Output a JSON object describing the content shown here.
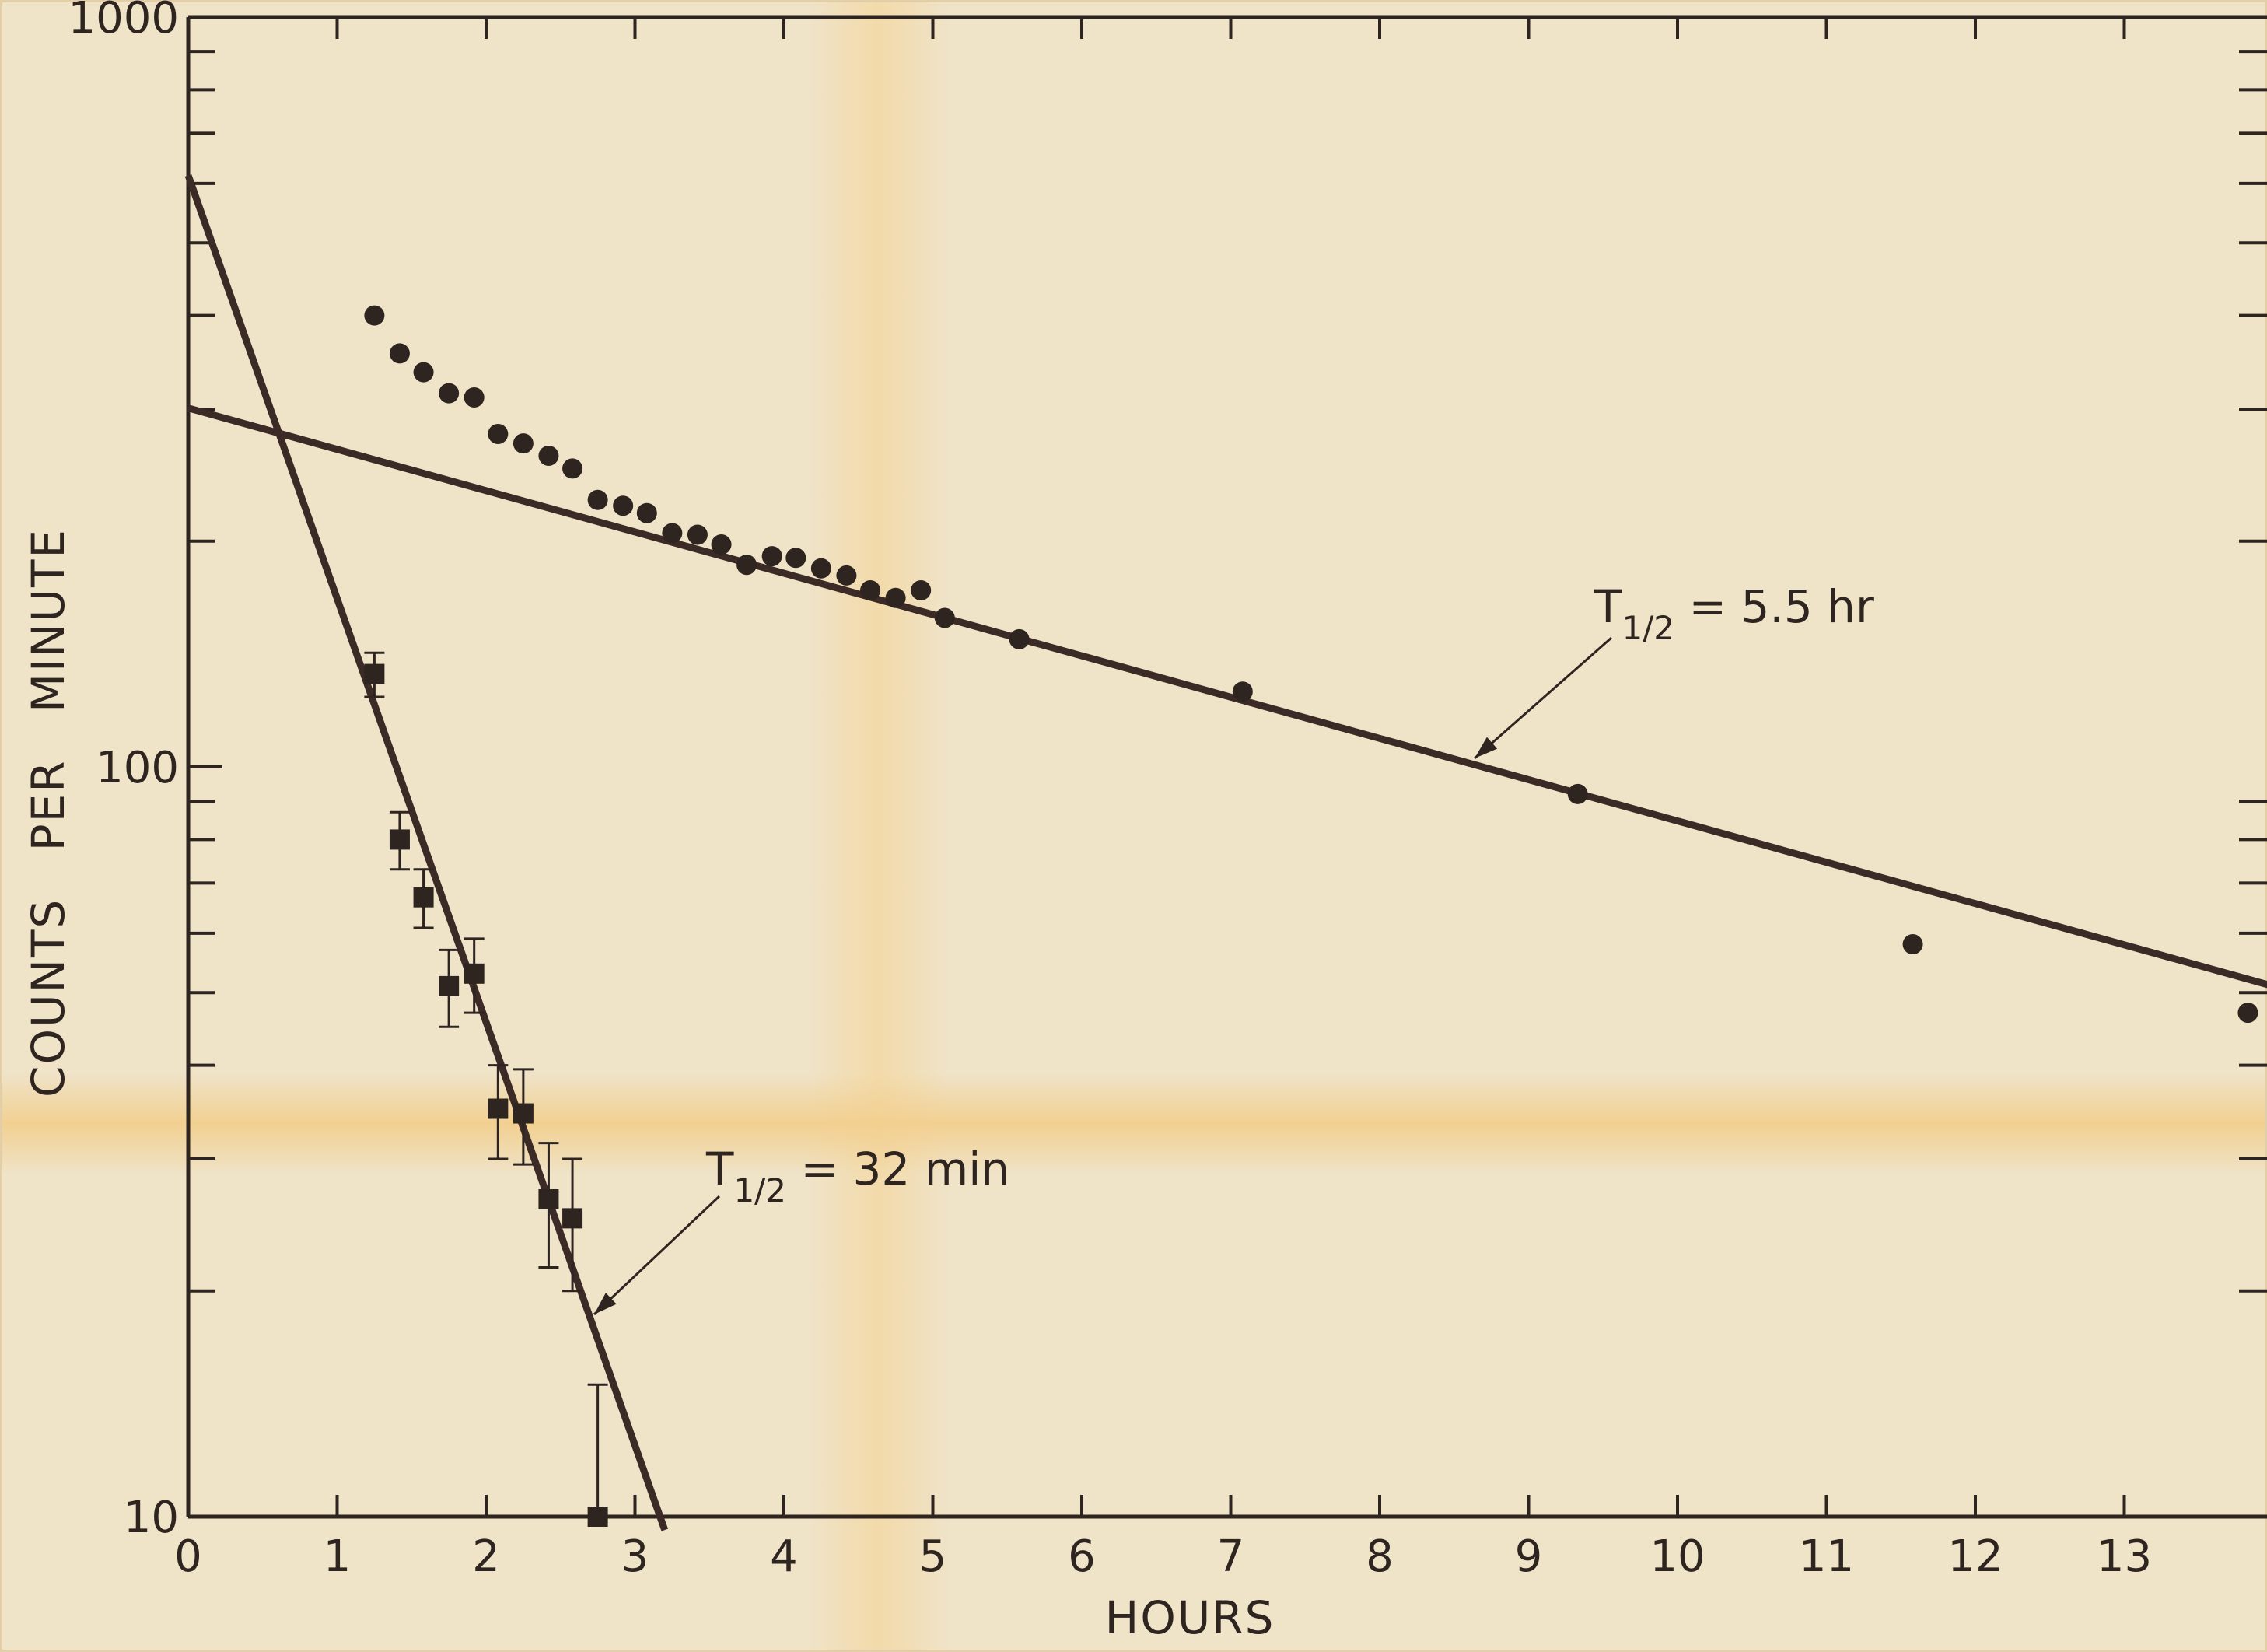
{
  "chart_data": {
    "type": "scatter",
    "title": "",
    "xlabel": "HOURS",
    "ylabel": "COUNTS PER MINUTE",
    "xlim": [
      0,
      14
    ],
    "ylim": [
      10,
      1000
    ],
    "yscale": "log",
    "x_ticks": [
      0,
      1,
      2,
      3,
      4,
      5,
      6,
      7,
      8,
      9,
      10,
      11,
      12,
      13
    ],
    "x_tick_labels": [
      "0",
      "1",
      "2",
      "3",
      "4",
      "5",
      "6",
      "7",
      "8",
      "9",
      "10",
      "11",
      "12",
      "13"
    ],
    "y_tick_values": [
      10,
      100,
      1000
    ],
    "y_tick_labels": [
      "10",
      "100",
      "1000"
    ],
    "grid": false,
    "series": [
      {
        "marker": "circle",
        "x": [
          1.25,
          1.42,
          1.58,
          1.75,
          1.92,
          2.08,
          2.25,
          2.42,
          2.58,
          2.75,
          2.92,
          3.08,
          3.25,
          3.42,
          3.58,
          3.75,
          3.92,
          4.08,
          4.25,
          4.42,
          4.58,
          4.75,
          4.92,
          5.08,
          5.58,
          7.08,
          9.33,
          11.58,
          13.83
        ],
        "y": [
          400,
          356,
          336,
          315,
          311,
          278,
          270,
          260,
          250,
          227,
          223,
          218,
          205,
          204,
          198,
          186,
          191,
          190,
          184,
          180,
          172,
          168,
          172,
          158,
          148,
          126,
          92,
          58,
          47
        ]
      },
      {
        "marker": "square",
        "x": [
          1.25,
          1.42,
          1.58,
          1.75,
          1.92,
          2.08,
          2.25,
          2.42,
          2.58,
          2.75
        ],
        "y": [
          133,
          80,
          67,
          51,
          53,
          35,
          34.5,
          26.5,
          25,
          10
        ],
        "yerr": [
          9,
          7,
          6,
          6,
          6,
          5,
          5,
          5,
          5,
          5
        ]
      }
    ],
    "fit_lines": [
      {
        "label": "T1/2 = 32 min",
        "x": [
          0,
          3.2
        ],
        "y": [
          615,
          9.6
        ]
      },
      {
        "label": "T1/2 = 5.5 hr",
        "x": [
          0,
          14
        ],
        "y": [
          301,
          51
        ]
      }
    ],
    "annotations": [
      {
        "text": "T",
        "sub": "1/2",
        "rest": " = 5.5 hr"
      },
      {
        "text": "T",
        "sub": "1/2",
        "rest": " = 32 min"
      }
    ]
  },
  "colors": {
    "ink": "#2e2420",
    "line": "#3b2a26",
    "paper": "#efe3c8",
    "stain": "#f3d9a6"
  }
}
